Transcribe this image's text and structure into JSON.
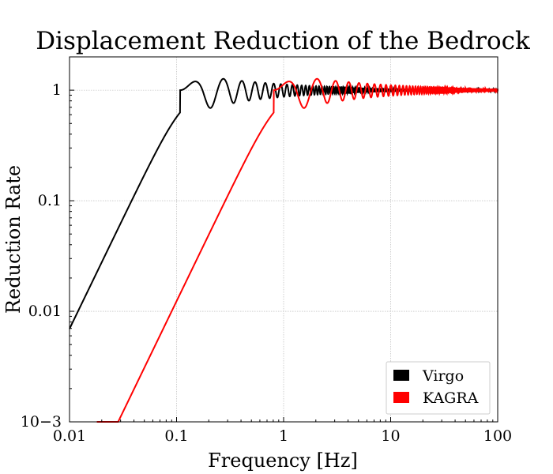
{
  "chart_data": {
    "type": "line",
    "title": "Displacement Reduction of the Bedrock",
    "xlabel": "Frequency [Hz]",
    "ylabel": "Reduction Rate",
    "xscale": "log",
    "yscale": "log",
    "xlim": [
      0.01,
      100
    ],
    "ylim": [
      0.001,
      2
    ],
    "x_ticks": [
      {
        "value": 0.01,
        "label": "0.01"
      },
      {
        "value": 0.1,
        "label": "0.1"
      },
      {
        "value": 1,
        "label": "1"
      },
      {
        "value": 10,
        "label": "10"
      },
      {
        "value": 100,
        "label": "100"
      }
    ],
    "y_ticks": [
      {
        "value": 0.001,
        "label": "10−3"
      },
      {
        "value": 0.01,
        "label": "0.01"
      },
      {
        "value": 0.1,
        "label": "0.1"
      },
      {
        "value": 1,
        "label": "1"
      }
    ],
    "grid": true,
    "legend_position": "bottom-right",
    "series": [
      {
        "name": "Virgo",
        "color": "#000000",
        "x": [
          0.01,
          0.02,
          0.05,
          0.1,
          0.15,
          0.2,
          0.27,
          0.35,
          0.5,
          1,
          10,
          100
        ],
        "y": [
          0.0125,
          0.05,
          0.3,
          1.0,
          1.4,
          1.2,
          0.72,
          1.3,
          0.75,
          1.05,
          1.0,
          1.0
        ]
      },
      {
        "name": "KAGRA",
        "color": "#ff0000",
        "x": [
          0.018,
          0.05,
          0.1,
          0.3,
          0.6,
          1.1,
          1.5,
          2.0,
          3.0,
          10,
          100
        ],
        "y": [
          0.001,
          0.0077,
          0.031,
          0.28,
          0.9,
          1.4,
          1.2,
          0.72,
          1.25,
          1.0,
          1.0
        ]
      }
    ]
  }
}
